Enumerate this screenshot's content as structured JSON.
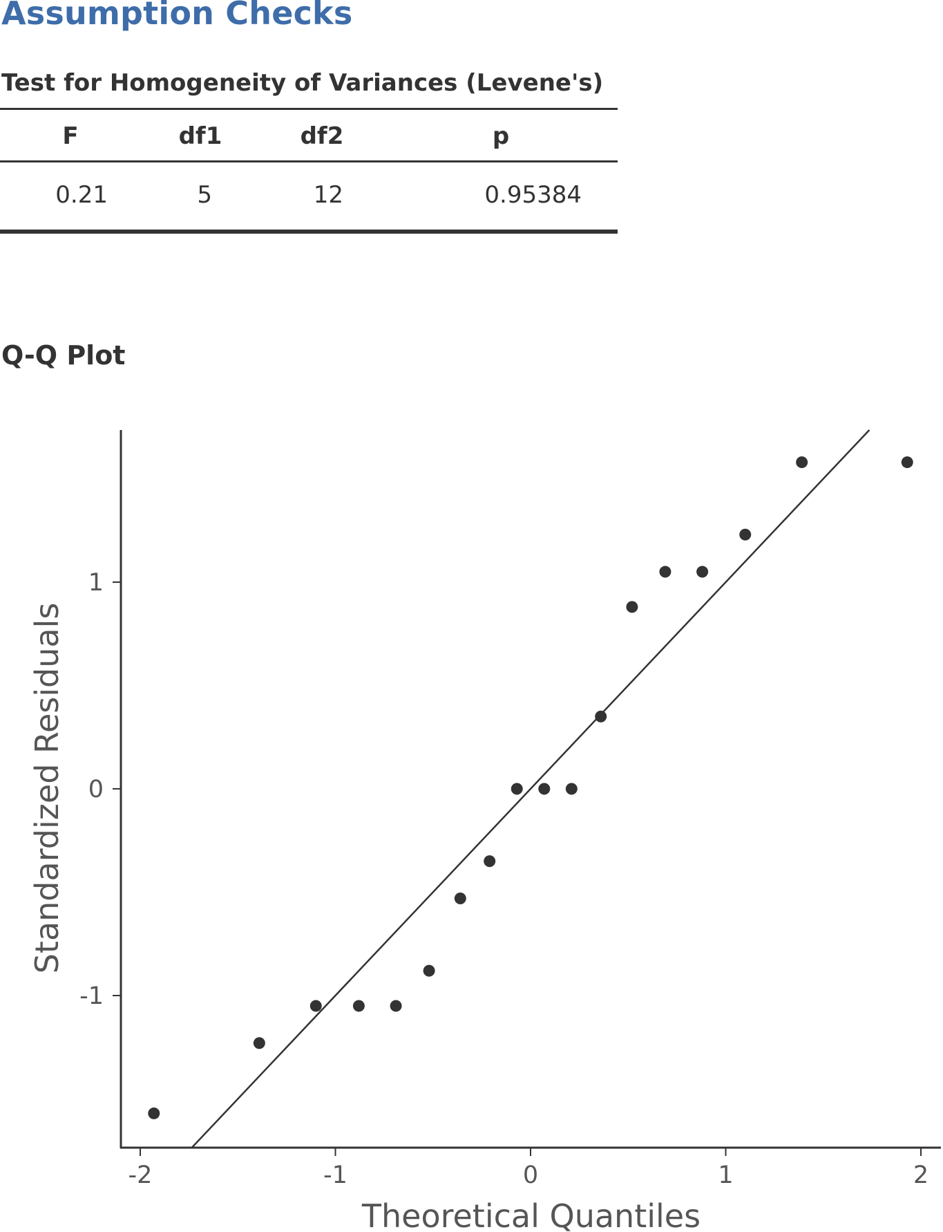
{
  "heading": "Assumption Checks",
  "levene": {
    "title": "Test for Homogeneity of Variances (Levene's)",
    "headers": [
      "F",
      "df1",
      "df2",
      "p"
    ],
    "row": [
      "0.21",
      "5",
      "12",
      "0.95384"
    ]
  },
  "qq": {
    "title": "Q-Q Plot"
  },
  "chart_data": {
    "type": "scatter",
    "title": "",
    "xlabel": "Theoretical Quantiles",
    "ylabel": "Standardized Residuals",
    "xlim": [
      -2.1,
      2.1
    ],
    "ylim": [
      -1.73,
      1.73
    ],
    "x_ticks": [
      "-2",
      "-1",
      "0",
      "1",
      "2"
    ],
    "y_ticks": [
      "-1",
      "0",
      "1"
    ],
    "points": [
      {
        "x": -1.93,
        "y": -1.57
      },
      {
        "x": -1.39,
        "y": -1.23
      },
      {
        "x": -1.1,
        "y": -1.05
      },
      {
        "x": -0.88,
        "y": -1.05
      },
      {
        "x": -0.69,
        "y": -1.05
      },
      {
        "x": -0.52,
        "y": -0.88
      },
      {
        "x": -0.36,
        "y": -0.53
      },
      {
        "x": -0.21,
        "y": -0.35
      },
      {
        "x": -0.07,
        "y": 0.0
      },
      {
        "x": 0.07,
        "y": 0.0
      },
      {
        "x": 0.21,
        "y": 0.0
      },
      {
        "x": 0.36,
        "y": 0.35
      },
      {
        "x": 0.52,
        "y": 0.88
      },
      {
        "x": 0.69,
        "y": 1.05
      },
      {
        "x": 0.88,
        "y": 1.05
      },
      {
        "x": 1.1,
        "y": 1.23
      },
      {
        "x": 1.39,
        "y": 1.58
      },
      {
        "x": 1.93,
        "y": 1.58
      }
    ],
    "reference_line": {
      "slope": 1.0,
      "intercept": 0.0
    },
    "grid": false,
    "colors": {
      "points": "#333333",
      "line": "#333333",
      "axis": "#333333"
    }
  }
}
